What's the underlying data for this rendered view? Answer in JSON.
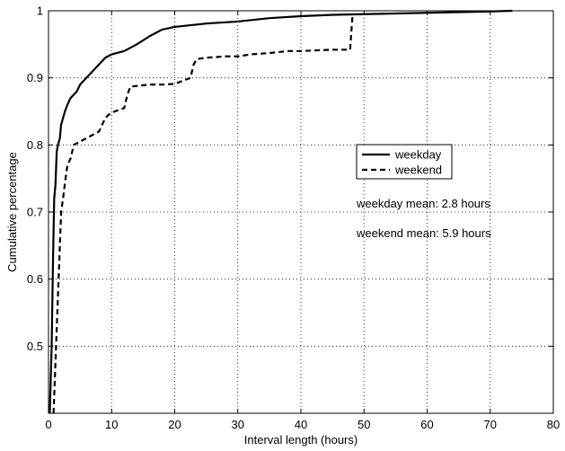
{
  "chart_data": {
    "type": "line",
    "title": "",
    "xlabel": "Interval length (hours)",
    "ylabel": "Cumulative percentage",
    "xlim": [
      0,
      80
    ],
    "ylim": [
      0.4,
      1.0
    ],
    "xticks": [
      0,
      10,
      20,
      30,
      40,
      50,
      60,
      70,
      80
    ],
    "yticks": [
      0.5,
      0.6,
      0.7,
      0.8,
      0.9,
      1.0
    ],
    "xtick_labels": [
      "0",
      "10",
      "20",
      "30",
      "40",
      "50",
      "60",
      "70",
      "80"
    ],
    "ytick_labels": [
      "0.5",
      "0.6",
      "0.7",
      "0.8",
      "0.9",
      "1"
    ],
    "grid": true,
    "legend_position": "center-right",
    "series": [
      {
        "name": "weekday",
        "color": "#000000",
        "linestyle": "solid",
        "x": [
          0.2,
          0.5,
          0.7,
          0.9,
          1.1,
          1.3,
          1.5,
          1.8,
          2.0,
          2.3,
          2.6,
          3.0,
          3.5,
          4.0,
          4.5,
          5.0,
          5.5,
          6.0,
          7.0,
          8.0,
          9.0,
          10.0,
          12.0,
          14.0,
          16.0,
          18.0,
          20.0,
          22.0,
          25.0,
          30.0,
          35.0,
          40.0,
          45.0,
          50.0,
          55.0,
          60.0,
          65.0,
          70.0,
          73.5
        ],
        "y": [
          0.4,
          0.5,
          0.62,
          0.72,
          0.74,
          0.79,
          0.8,
          0.81,
          0.83,
          0.84,
          0.85,
          0.86,
          0.87,
          0.875,
          0.88,
          0.89,
          0.895,
          0.9,
          0.91,
          0.92,
          0.93,
          0.935,
          0.94,
          0.95,
          0.962,
          0.972,
          0.976,
          0.978,
          0.981,
          0.984,
          0.989,
          0.992,
          0.994,
          0.995,
          0.996,
          0.997,
          0.998,
          0.999,
          1.0
        ]
      },
      {
        "name": "weekend",
        "color": "#000000",
        "linestyle": "dashed",
        "x": [
          0.8,
          1.0,
          1.2,
          1.4,
          1.6,
          1.8,
          2.0,
          2.3,
          2.7,
          3.0,
          3.5,
          4.0,
          5.0,
          6.0,
          8.0,
          9.0,
          9.5,
          10.5,
          12.0,
          12.5,
          13.0,
          14.0,
          16.0,
          18.0,
          20.0,
          22.5,
          23.0,
          23.5,
          25.0,
          28.0,
          30.0,
          32.0,
          35.0,
          38.0,
          40.0,
          45.0,
          47.8,
          48.0,
          48.2
        ],
        "y": [
          0.4,
          0.45,
          0.5,
          0.55,
          0.6,
          0.65,
          0.7,
          0.72,
          0.75,
          0.77,
          0.78,
          0.8,
          0.805,
          0.81,
          0.82,
          0.84,
          0.845,
          0.85,
          0.855,
          0.875,
          0.887,
          0.888,
          0.89,
          0.89,
          0.891,
          0.9,
          0.92,
          0.928,
          0.93,
          0.932,
          0.932,
          0.935,
          0.937,
          0.94,
          0.94,
          0.942,
          0.942,
          0.97,
          0.995
        ]
      }
    ],
    "annotations": [
      "weekday mean: 2.8 hours",
      "weekend mean: 5.9 hours"
    ]
  }
}
